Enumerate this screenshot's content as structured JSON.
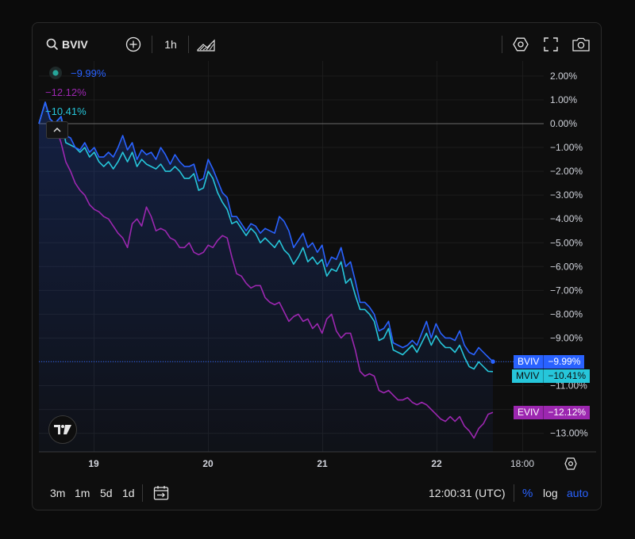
{
  "toolbar": {
    "symbol": "BVIV",
    "interval": "1h",
    "icons": [
      "search-icon",
      "add-compare-icon",
      "chart-style-icon",
      "settings-icon",
      "fullscreen-icon",
      "screenshot-icon"
    ]
  },
  "legend": {
    "bviv_change": "−9.99%",
    "eviv_change": "−12.12%",
    "mviv_change": "−10.41%"
  },
  "bottom": {
    "ranges": [
      "3m",
      "1m",
      "5d",
      "1d"
    ],
    "time": "12:00:31 (UTC)",
    "percent": "%",
    "log": "log",
    "auto": "auto"
  },
  "colors": {
    "bviv": "#2962ff",
    "mviv": "#26c6da",
    "eviv": "#9c27b0",
    "background": "#0e0e0e",
    "grid": "#1c1c1c"
  },
  "chart_data": {
    "type": "line",
    "y_unit": "percent change",
    "yticks": [
      "2.00%",
      "1.00%",
      "0.00%",
      "−1.00%",
      "−2.00%",
      "−3.00%",
      "−4.00%",
      "−5.00%",
      "−6.00%",
      "−7.00%",
      "−8.00%",
      "−9.00%",
      "−11.00%",
      "−13.00%"
    ],
    "xticks": [
      "19",
      "20",
      "21",
      "22",
      "18:00"
    ],
    "ylim": [
      -13.5,
      2.5
    ],
    "x_range_hours": [
      -17,
      126
    ],
    "series": [
      {
        "name": "BVIV",
        "last_label": "−9.99%",
        "x": [
          -17,
          -13,
          -10,
          -7,
          -3,
          0,
          3,
          6,
          9,
          12,
          15,
          18,
          21,
          24,
          27,
          30,
          33,
          36,
          39,
          42,
          45,
          48,
          51,
          54,
          57,
          60,
          63,
          66,
          69,
          72,
          75,
          78,
          81,
          84,
          87,
          90,
          93,
          96,
          99,
          102,
          105,
          108,
          111,
          114,
          117,
          120,
          123,
          126,
          129,
          132,
          135,
          138,
          141,
          144,
          147,
          150,
          153,
          156,
          159,
          162,
          165,
          168,
          171,
          174,
          177,
          180,
          183,
          186,
          189,
          192,
          195,
          198,
          201,
          204,
          207,
          210,
          213,
          216,
          219,
          222,
          225,
          228,
          231,
          234,
          237,
          240,
          243,
          246,
          249,
          252,
          255,
          258,
          261,
          264,
          267,
          270
        ],
        "y": [
          0.0,
          0.9,
          0.2,
          0.0,
          0.3,
          -0.5,
          -0.6,
          -1.0,
          -1.1,
          -0.8,
          -1.2,
          -1.0,
          -1.4,
          -1.4,
          -1.2,
          -1.4,
          -1.0,
          -0.5,
          -1.1,
          -0.8,
          -1.5,
          -1.1,
          -1.3,
          -1.2,
          -1.5,
          -1.0,
          -1.3,
          -1.7,
          -1.3,
          -1.6,
          -1.8,
          -1.8,
          -1.7,
          -2.4,
          -2.3,
          -1.5,
          -1.9,
          -2.4,
          -2.9,
          -3.1,
          -3.9,
          -3.9,
          -4.2,
          -4.5,
          -4.2,
          -4.3,
          -4.6,
          -4.4,
          -4.5,
          -4.6,
          -3.9,
          -4.1,
          -4.5,
          -5.2,
          -4.9,
          -4.6,
          -5.2,
          -5.0,
          -5.4,
          -5.1,
          -6.0,
          -5.6,
          -5.7,
          -5.2,
          -6.0,
          -5.8,
          -6.6,
          -7.5,
          -7.5,
          -7.7,
          -8.0,
          -8.7,
          -8.6,
          -8.3,
          -9.2,
          -9.3,
          -9.4,
          -9.3,
          -9.1,
          -9.3,
          -8.8,
          -8.3,
          -9.0,
          -8.4,
          -8.8,
          -9.0,
          -9.0,
          -9.1,
          -8.7,
          -9.3,
          -9.6,
          -9.7,
          -9.4,
          -9.6,
          -9.8,
          -9.99
        ]
      },
      {
        "name": "MVIV",
        "last_label": "−10.41%",
        "x": [
          -17,
          -13,
          -10,
          -7,
          -3,
          0,
          3,
          6,
          9,
          12,
          15,
          18,
          21,
          24,
          27,
          30,
          33,
          36,
          39,
          42,
          45,
          48,
          51,
          54,
          57,
          60,
          63,
          66,
          69,
          72,
          75,
          78,
          81,
          84,
          87,
          90,
          93,
          96,
          99,
          102,
          105,
          108,
          111,
          114,
          117,
          120,
          123,
          126,
          129,
          132,
          135,
          138,
          141,
          144,
          147,
          150,
          153,
          156,
          159,
          162,
          165,
          168,
          171,
          174,
          177,
          180,
          183,
          186,
          189,
          192,
          195,
          198,
          201,
          204,
          207,
          210,
          213,
          216,
          219,
          222,
          225,
          228,
          231,
          234,
          237,
          240,
          243,
          246,
          249,
          252,
          255,
          258,
          261,
          264,
          267,
          270
        ],
        "y": [
          0.0,
          0.9,
          0.2,
          0.0,
          0.3,
          -0.8,
          -0.9,
          -1.0,
          -1.2,
          -1.0,
          -1.4,
          -1.2,
          -1.6,
          -1.8,
          -1.6,
          -1.9,
          -1.6,
          -1.2,
          -1.6,
          -1.2,
          -1.8,
          -1.5,
          -1.7,
          -1.8,
          -1.9,
          -1.7,
          -2.0,
          -2.0,
          -1.8,
          -2.0,
          -2.3,
          -2.3,
          -2.1,
          -2.8,
          -2.7,
          -2.0,
          -2.3,
          -2.9,
          -3.3,
          -3.6,
          -4.2,
          -4.1,
          -4.4,
          -4.7,
          -4.4,
          -4.6,
          -5.0,
          -4.8,
          -5.0,
          -5.2,
          -4.9,
          -5.3,
          -5.5,
          -5.9,
          -5.6,
          -5.2,
          -5.8,
          -5.6,
          -5.9,
          -5.7,
          -6.4,
          -6.1,
          -6.2,
          -5.8,
          -6.7,
          -6.5,
          -7.2,
          -7.8,
          -7.8,
          -8.0,
          -8.3,
          -9.1,
          -9.0,
          -8.6,
          -9.5,
          -9.6,
          -9.7,
          -9.5,
          -9.3,
          -9.6,
          -9.2,
          -8.8,
          -9.3,
          -8.9,
          -9.2,
          -9.4,
          -9.4,
          -9.6,
          -9.3,
          -9.8,
          -10.2,
          -10.3,
          -10.0,
          -10.2,
          -10.4,
          -10.41
        ]
      },
      {
        "name": "EVIV",
        "last_label": "−12.12%",
        "x": [
          -17,
          -13,
          -10,
          -7,
          -3,
          0,
          3,
          6,
          9,
          12,
          15,
          18,
          21,
          24,
          27,
          30,
          33,
          36,
          39,
          42,
          45,
          48,
          51,
          54,
          57,
          60,
          63,
          66,
          69,
          72,
          75,
          78,
          81,
          84,
          87,
          90,
          93,
          96,
          99,
          102,
          105,
          108,
          111,
          114,
          117,
          120,
          123,
          126,
          129,
          132,
          135,
          138,
          141,
          144,
          147,
          150,
          153,
          156,
          159,
          162,
          165,
          168,
          171,
          174,
          177,
          180,
          183,
          186,
          189,
          192,
          195,
          198,
          201,
          204,
          207,
          210,
          213,
          216,
          219,
          222,
          225,
          228,
          231,
          234,
          237,
          240,
          243,
          246,
          249,
          252,
          255,
          258,
          261,
          264,
          267,
          270
        ],
        "y": [
          0.0,
          0.9,
          0.2,
          0.0,
          -0.8,
          -1.6,
          -2.0,
          -2.5,
          -2.8,
          -3.0,
          -3.4,
          -3.6,
          -3.7,
          -3.9,
          -4.0,
          -4.3,
          -4.6,
          -4.8,
          -5.2,
          -4.2,
          -4.0,
          -4.3,
          -3.5,
          -3.9,
          -4.5,
          -4.4,
          -4.5,
          -4.8,
          -4.9,
          -5.2,
          -5.2,
          -5.0,
          -5.4,
          -5.5,
          -5.4,
          -5.1,
          -5.2,
          -4.9,
          -4.7,
          -4.8,
          -5.6,
          -6.3,
          -6.4,
          -6.7,
          -6.9,
          -6.8,
          -6.8,
          -7.3,
          -7.5,
          -7.6,
          -7.5,
          -7.9,
          -8.3,
          -8.1,
          -8.0,
          -8.3,
          -8.2,
          -8.6,
          -8.4,
          -8.8,
          -8.2,
          -8.0,
          -8.7,
          -9.0,
          -8.8,
          -8.8,
          -9.5,
          -10.4,
          -10.6,
          -10.5,
          -10.6,
          -11.2,
          -11.3,
          -11.2,
          -11.4,
          -11.6,
          -11.6,
          -11.5,
          -11.7,
          -11.8,
          -11.7,
          -11.8,
          -12.0,
          -12.2,
          -12.4,
          -12.5,
          -12.3,
          -12.5,
          -12.3,
          -12.7,
          -12.9,
          -13.2,
          -12.8,
          -12.6,
          -12.2,
          -12.12
        ]
      }
    ]
  }
}
